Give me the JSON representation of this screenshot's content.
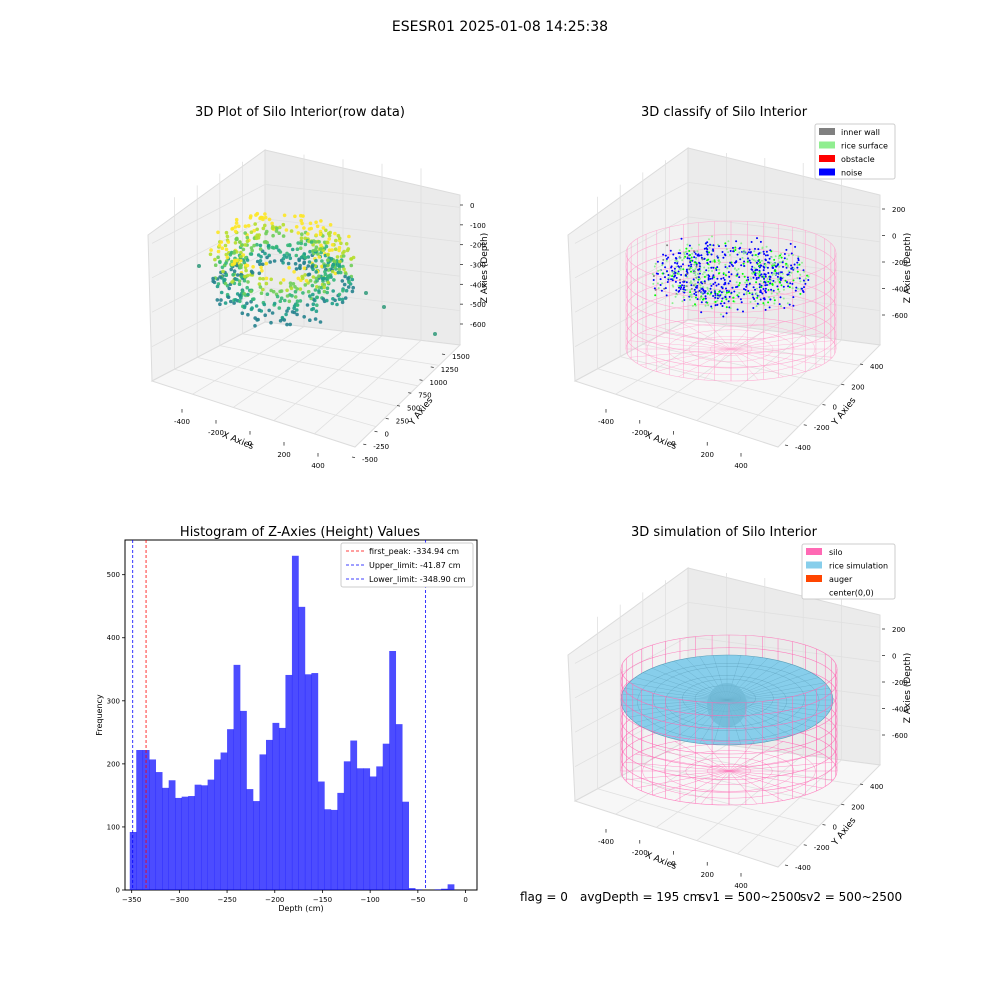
{
  "suptitle": "ESESR01 2025-01-08 14:25:38",
  "panels": {
    "raw": {
      "title": "3D Plot of Silo Interior(row data)",
      "xlabel": "X Axies",
      "ylabel": "Y Axies",
      "zlabel": "Z Axies (Depth)",
      "xticks": [
        "-400",
        "-200",
        "0",
        "200",
        "400"
      ],
      "yticks": [
        "-500",
        "-250",
        "0",
        "250",
        "500",
        "750",
        "1000",
        "1250",
        "1500"
      ],
      "zticks": [
        "0",
        "-100",
        "-200",
        "-300",
        "-400",
        "-500",
        "-600"
      ],
      "colormap": "viridis"
    },
    "classify": {
      "title": "3D classify of Silo Interior",
      "xlabel": "X Axies",
      "ylabel": "Y Axies",
      "zlabel": "Z Axies (Depth)",
      "xticks": [
        "-400",
        "-200",
        "0",
        "200",
        "400"
      ],
      "yticks": [
        "-400",
        "-200",
        "0",
        "200",
        "400"
      ],
      "zticks": [
        "200",
        "0",
        "-200",
        "-400",
        "-600"
      ],
      "legend": [
        {
          "label": "inner wall",
          "color": "#808080"
        },
        {
          "label": "rice surface",
          "color": "#90ee90"
        },
        {
          "label": "obstacle",
          "color": "#ff0000"
        },
        {
          "label": "noise",
          "color": "#0000ff"
        }
      ]
    },
    "simulation": {
      "title": "3D simulation of Silo Interior",
      "xlabel": "X Axies",
      "ylabel": "Y Axies",
      "zlabel": "Z Axies (Depth)",
      "xticks": [
        "-400",
        "-200",
        "0",
        "200",
        "400"
      ],
      "yticks": [
        "-400",
        "-200",
        "0",
        "200",
        "400"
      ],
      "zticks": [
        "200",
        "0",
        "-200",
        "-400",
        "-600"
      ],
      "legend": [
        {
          "label": "silo",
          "color": "#ff69b4"
        },
        {
          "label": "rice simulation",
          "color": "#87ceeb"
        },
        {
          "label": "auger",
          "color": "#ff4500"
        },
        {
          "label": "center(0,0)",
          "color": "#ffffff"
        }
      ]
    }
  },
  "chart_data": [
    {
      "type": "bar",
      "title": "Histogram of Z-Axies (Height) Values",
      "xlabel": "Depth (cm)",
      "ylabel": "Frequency",
      "xlim": [
        -357,
        12
      ],
      "ylim": [
        0,
        555
      ],
      "xticks": [
        -350,
        -300,
        -250,
        -200,
        -150,
        -100,
        -50,
        0
      ],
      "yticks": [
        0,
        100,
        200,
        300,
        400,
        500
      ],
      "bar_color": "#0000ff",
      "bin_edges_start": -352,
      "bin_width": 6.8,
      "values": [
        92,
        222,
        222,
        207,
        187,
        162,
        174,
        146,
        148,
        149,
        167,
        166,
        175,
        207,
        218,
        255,
        357,
        284,
        160,
        141,
        215,
        238,
        265,
        257,
        341,
        530,
        449,
        342,
        344,
        172,
        128,
        127,
        154,
        204,
        237,
        193,
        193,
        180,
        196,
        232,
        379,
        263,
        140,
        3,
        1,
        0,
        0,
        1,
        2,
        9
      ],
      "reference_lines": [
        {
          "name": "first_peak: -334.94 cm",
          "x": -334.94,
          "color": "#ff0000"
        },
        {
          "name": "Upper_limit: -41.87 cm",
          "x": -41.87,
          "color": "#0000ff"
        },
        {
          "name": "Lower_limit: -348.90 cm",
          "x": -348.9,
          "color": "#0000ff"
        }
      ],
      "legend_position": "top-right"
    }
  ],
  "footer": {
    "flag": "flag = 0",
    "avg": "avgDepth = 195 cm",
    "sv1": "sv1 = 500~2500",
    "sv2": "sv2 = 500~2500"
  }
}
